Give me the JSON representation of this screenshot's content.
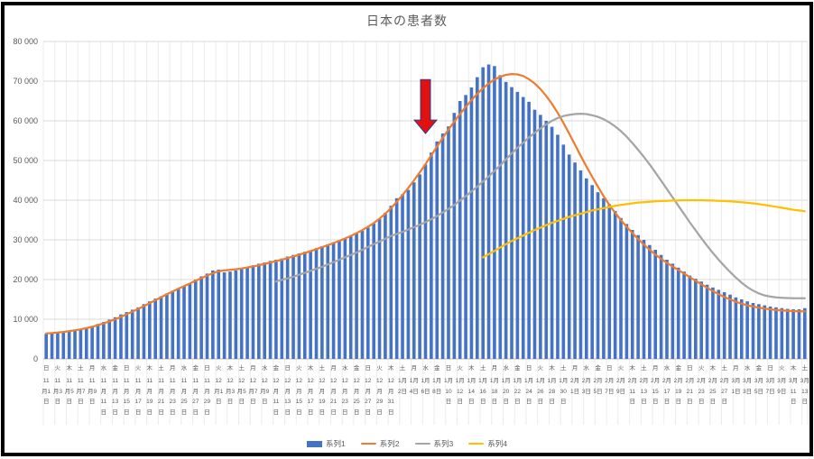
{
  "chart": {
    "title": "日本の患者数",
    "y_axis": {
      "tick_labels": [
        "0",
        "10 000",
        "20 000",
        "30 000",
        "40 000",
        "50 000",
        "60 000",
        "70 000",
        "80 000"
      ],
      "min": 0,
      "max": 80000,
      "step": 10000
    },
    "x_axis": {
      "ticks": [
        {
          "w": "日",
          "lines": [
            "11",
            "月1",
            "日"
          ]
        },
        {
          "w": "火",
          "lines": [
            "11",
            "月3",
            "日"
          ]
        },
        {
          "w": "木",
          "lines": [
            "11",
            "月5",
            "日"
          ]
        },
        {
          "w": "土",
          "lines": [
            "11",
            "月7",
            "日"
          ]
        },
        {
          "w": "月",
          "lines": [
            "11",
            "月9",
            "日"
          ]
        },
        {
          "w": "水",
          "lines": [
            "11",
            "月",
            "11",
            "日"
          ]
        },
        {
          "w": "金",
          "lines": [
            "11",
            "月",
            "13",
            "日"
          ]
        },
        {
          "w": "日",
          "lines": [
            "11",
            "月",
            "15",
            "日"
          ]
        },
        {
          "w": "火",
          "lines": [
            "11",
            "月",
            "17",
            "日"
          ]
        },
        {
          "w": "木",
          "lines": [
            "11",
            "月",
            "19",
            "日"
          ]
        },
        {
          "w": "土",
          "lines": [
            "11",
            "月",
            "21",
            "日"
          ]
        },
        {
          "w": "月",
          "lines": [
            "11",
            "月",
            "23",
            "日"
          ]
        },
        {
          "w": "水",
          "lines": [
            "11",
            "月",
            "25",
            "日"
          ]
        },
        {
          "w": "金",
          "lines": [
            "11",
            "月",
            "27",
            "日"
          ]
        },
        {
          "w": "日",
          "lines": [
            "11",
            "月",
            "29",
            "日"
          ]
        },
        {
          "w": "火",
          "lines": [
            "12",
            "月1",
            "日"
          ]
        },
        {
          "w": "木",
          "lines": [
            "12",
            "月3",
            "日"
          ]
        },
        {
          "w": "土",
          "lines": [
            "12",
            "月5",
            "日"
          ]
        },
        {
          "w": "月",
          "lines": [
            "12",
            "月7",
            "日"
          ]
        },
        {
          "w": "水",
          "lines": [
            "12",
            "月9",
            "日"
          ]
        },
        {
          "w": "金",
          "lines": [
            "12",
            "月",
            "11",
            "日"
          ]
        },
        {
          "w": "日",
          "lines": [
            "12",
            "月",
            "13",
            "日"
          ]
        },
        {
          "w": "火",
          "lines": [
            "12",
            "月",
            "15",
            "日"
          ]
        },
        {
          "w": "木",
          "lines": [
            "12",
            "月",
            "17",
            "日"
          ]
        },
        {
          "w": "土",
          "lines": [
            "12",
            "月",
            "19",
            "日"
          ]
        },
        {
          "w": "月",
          "lines": [
            "12",
            "月",
            "21",
            "日"
          ]
        },
        {
          "w": "水",
          "lines": [
            "12",
            "月",
            "23",
            "日"
          ]
        },
        {
          "w": "金",
          "lines": [
            "12",
            "月",
            "25",
            "日"
          ]
        },
        {
          "w": "日",
          "lines": [
            "12",
            "月",
            "27",
            "日"
          ]
        },
        {
          "w": "火",
          "lines": [
            "12",
            "月",
            "29",
            "日"
          ]
        },
        {
          "w": "木",
          "lines": [
            "12",
            "月",
            "31",
            "日"
          ]
        },
        {
          "w": "土",
          "lines": [
            "1月",
            "2日"
          ]
        },
        {
          "w": "月",
          "lines": [
            "1月",
            "4日"
          ]
        },
        {
          "w": "水",
          "lines": [
            "1月",
            "6日"
          ]
        },
        {
          "w": "金",
          "lines": [
            "1月",
            "8日"
          ]
        },
        {
          "w": "日",
          "lines": [
            "1月",
            "10",
            "日"
          ]
        },
        {
          "w": "火",
          "lines": [
            "1月",
            "12",
            "日"
          ]
        },
        {
          "w": "木",
          "lines": [
            "1月",
            "14",
            "日"
          ]
        },
        {
          "w": "土",
          "lines": [
            "1月",
            "16",
            "日"
          ]
        },
        {
          "w": "月",
          "lines": [
            "1月",
            "18",
            "日"
          ]
        },
        {
          "w": "水",
          "lines": [
            "1月",
            "20",
            "日"
          ]
        },
        {
          "w": "金",
          "lines": [
            "1月",
            "22",
            "日"
          ]
        },
        {
          "w": "日",
          "lines": [
            "1月",
            "24",
            "日"
          ]
        },
        {
          "w": "火",
          "lines": [
            "1月",
            "26",
            "日"
          ]
        },
        {
          "w": "木",
          "lines": [
            "1月",
            "28",
            "日"
          ]
        },
        {
          "w": "土",
          "lines": [
            "1月",
            "30",
            "日"
          ]
        },
        {
          "w": "月",
          "lines": [
            "2月",
            "1日"
          ]
        },
        {
          "w": "水",
          "lines": [
            "2月",
            "3日"
          ]
        },
        {
          "w": "金",
          "lines": [
            "2月",
            "5日"
          ]
        },
        {
          "w": "日",
          "lines": [
            "2月",
            "7日"
          ]
        },
        {
          "w": "火",
          "lines": [
            "2月",
            "9日"
          ]
        },
        {
          "w": "木",
          "lines": [
            "2月",
            "11",
            "日"
          ]
        },
        {
          "w": "土",
          "lines": [
            "2月",
            "13",
            "日"
          ]
        },
        {
          "w": "月",
          "lines": [
            "2月",
            "15",
            "日"
          ]
        },
        {
          "w": "水",
          "lines": [
            "2月",
            "17",
            "日"
          ]
        },
        {
          "w": "金",
          "lines": [
            "2月",
            "19",
            "日"
          ]
        },
        {
          "w": "日",
          "lines": [
            "2月",
            "21",
            "日"
          ]
        },
        {
          "w": "火",
          "lines": [
            "2月",
            "23",
            "日"
          ]
        },
        {
          "w": "木",
          "lines": [
            "2月",
            "25",
            "日"
          ]
        },
        {
          "w": "土",
          "lines": [
            "2月",
            "27",
            "日"
          ]
        },
        {
          "w": "月",
          "lines": [
            "3月",
            "1日"
          ]
        },
        {
          "w": "水",
          "lines": [
            "3月",
            "3日"
          ]
        },
        {
          "w": "金",
          "lines": [
            "3月",
            "5日"
          ]
        },
        {
          "w": "日",
          "lines": [
            "3月",
            "7日"
          ]
        },
        {
          "w": "火",
          "lines": [
            "3月",
            "9日"
          ]
        },
        {
          "w": "木",
          "lines": [
            "3月",
            "11",
            "日"
          ]
        },
        {
          "w": "土",
          "lines": [
            "3月",
            "13",
            "日"
          ]
        }
      ]
    },
    "legend": [
      {
        "label": "系列1",
        "color": "#4472C4",
        "type": "bar"
      },
      {
        "label": "系列2",
        "color": "#ED7D31",
        "type": "line"
      },
      {
        "label": "系列3",
        "color": "#A5A5A5",
        "type": "line"
      },
      {
        "label": "系列4",
        "color": "#FFC000",
        "type": "line"
      }
    ],
    "annotation": {
      "shape": "down-block-arrow",
      "fill": "#E21111",
      "outline": "#2F3C8F",
      "x_index": 66,
      "top_value": 70400,
      "tip_value": 56800
    },
    "colors": {
      "grid_h": "#D9D9D9",
      "grid_v": "#ECECEC",
      "axis": "#BFBFBF",
      "text": "#595959"
    }
  },
  "chart_data": {
    "type": "bar",
    "title": "日本の患者数",
    "x_start": "2020-11-01 (11月1日 日)",
    "x_end": "2021-03-13 (3月13日 土)",
    "x_step_days": 1,
    "x_label_every_days": 2,
    "ylim": [
      0,
      80000
    ],
    "grid": true,
    "legend_position": "bottom",
    "series": [
      {
        "name": "系列1",
        "type": "bar",
        "color": "#4472C4",
        "start_index": 0,
        "values": [
          6300,
          6500,
          6600,
          6800,
          7100,
          7200,
          7500,
          7800,
          8300,
          8800,
          9300,
          9900,
          10500,
          11200,
          11800,
          12400,
          13000,
          13800,
          14500,
          15200,
          15800,
          16500,
          17200,
          17800,
          18300,
          19000,
          20000,
          20800,
          21500,
          22300,
          22500,
          21800,
          22000,
          22300,
          22800,
          23200,
          23600,
          24000,
          24300,
          24700,
          25000,
          25300,
          25800,
          26200,
          26600,
          27000,
          27400,
          27900,
          28400,
          28900,
          29400,
          29900,
          30400,
          31000,
          31600,
          32300,
          33100,
          34100,
          35300,
          36800,
          38600,
          40500,
          41500,
          42600,
          44500,
          46500,
          49000,
          52000,
          54800,
          56800,
          58600,
          62000,
          65000,
          66500,
          68400,
          71000,
          73500,
          74200,
          73800,
          71500,
          69800,
          68500,
          67300,
          66000,
          64800,
          62800,
          61500,
          60000,
          58500,
          56500,
          54000,
          51500,
          49500,
          47500,
          45500,
          43800,
          42000,
          40500,
          39000,
          37300,
          35500,
          34000,
          32500,
          31200,
          30000,
          28700,
          27500,
          26200,
          25000,
          24000,
          23000,
          22000,
          21000,
          20200,
          19500,
          18700,
          18000,
          17400,
          16800,
          16200,
          15500,
          15000,
          14500,
          14100,
          13800,
          13500,
          13200,
          13000,
          12800,
          12600,
          12500,
          12500,
          12800
        ]
      },
      {
        "name": "系列2",
        "type": "line",
        "color": "#ED7D31",
        "start_index": 0,
        "values": [
          6400,
          6500,
          6650,
          6800,
          7000,
          7200,
          7450,
          7750,
          8100,
          8500,
          8950,
          9450,
          10000,
          10600,
          11250,
          11900,
          12600,
          13300,
          14050,
          14800,
          15550,
          16300,
          17000,
          17700,
          18350,
          19000,
          19700,
          20350,
          21000,
          21600,
          22100,
          22300,
          22450,
          22600,
          22800,
          23050,
          23300,
          23600,
          23950,
          24300,
          24650,
          25000,
          25400,
          25800,
          26250,
          26700,
          27150,
          27650,
          28150,
          28650,
          29200,
          29750,
          30350,
          31000,
          31700,
          32450,
          33300,
          34250,
          35350,
          36600,
          38000,
          39600,
          41300,
          43100,
          45000,
          47000,
          49100,
          51300,
          53500,
          55700,
          57800,
          59800,
          61700,
          63500,
          65200,
          66800,
          68200,
          69400,
          70400,
          71100,
          71600,
          71800,
          71700,
          71300,
          70500,
          69400,
          68000,
          66300,
          64300,
          62000,
          59500,
          56800,
          54000,
          51200,
          48500,
          45900,
          43400,
          41000,
          38800,
          36800,
          35000,
          33300,
          31700,
          30200,
          28800,
          27500,
          26300,
          25200,
          24200,
          23300,
          22400,
          21500,
          20600,
          19700,
          18800,
          17900,
          17100,
          16300,
          15600,
          15000,
          14400,
          13900,
          13500,
          13200,
          12900,
          12700,
          12500,
          12350,
          12200,
          12100,
          12050,
          12000,
          12000
        ]
      },
      {
        "name": "系列3",
        "type": "line",
        "color": "#A5A5A5",
        "start_index": 40,
        "values": [
          19500,
          19900,
          20300,
          20700,
          21200,
          21700,
          22200,
          22700,
          23200,
          23800,
          24400,
          25000,
          25600,
          26200,
          26800,
          27500,
          28200,
          28900,
          29600,
          30300,
          31000,
          31500,
          32000,
          32600,
          33200,
          33800,
          34500,
          35200,
          36000,
          36900,
          37800,
          38800,
          39900,
          41000,
          42200,
          43400,
          44700,
          46000,
          47400,
          48800,
          50300,
          51800,
          53200,
          54500,
          55800,
          57000,
          58100,
          59100,
          60000,
          60700,
          61200,
          61500,
          61700,
          61800,
          61700,
          61400,
          61000,
          60400,
          59600,
          58600,
          57400,
          56000,
          54400,
          52700,
          50900,
          49000,
          47000,
          44900,
          42800,
          40700,
          38600,
          36500,
          34400,
          32400,
          30400,
          28500,
          26700,
          25000,
          23400,
          21900,
          20500,
          19200,
          18100,
          17200,
          16500,
          16000,
          15700,
          15500,
          15400,
          15350,
          15300,
          15300,
          15300
        ]
      },
      {
        "name": "系列4",
        "type": "line",
        "color": "#FFC000",
        "start_index": 76,
        "values": [
          25600,
          26400,
          27200,
          28100,
          28900,
          29700,
          30400,
          31100,
          31800,
          32500,
          33100,
          33700,
          34300,
          34800,
          35300,
          35800,
          36200,
          36600,
          37000,
          37400,
          37700,
          38000,
          38300,
          38600,
          38800,
          39000,
          39200,
          39400,
          39500,
          39600,
          39700,
          39800,
          39850,
          39900,
          39950,
          40000,
          40000,
          40000,
          40000,
          39950,
          39900,
          39850,
          39800,
          39700,
          39600,
          39500,
          39350,
          39200,
          39000,
          38800,
          38600,
          38350,
          38100,
          37850,
          37600,
          37400,
          37200
        ]
      }
    ]
  }
}
